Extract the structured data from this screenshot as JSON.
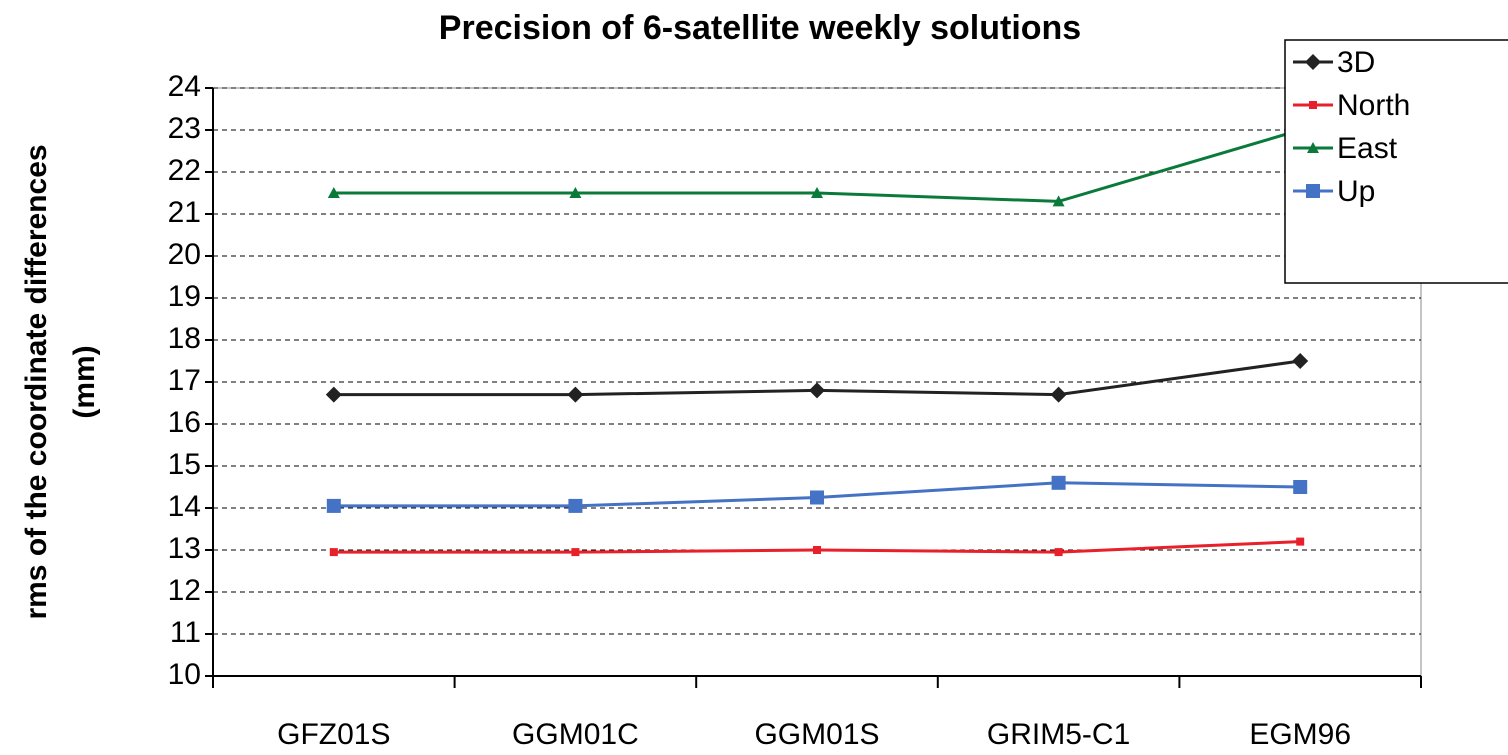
{
  "chart_data": {
    "type": "line",
    "title": "Precision of 6-satellite weekly solutions",
    "ylabel": [
      "rms of the coordinate differences",
      "(mm)"
    ],
    "categories": [
      "GFZ01S",
      "GGM01C",
      "GGM01S",
      "GRIM5-C1",
      "EGM96"
    ],
    "series": [
      {
        "name": "3D",
        "color": "#222222",
        "marker": "diamond",
        "values": [
          16.7,
          16.7,
          16.8,
          16.7,
          17.5
        ]
      },
      {
        "name": "North",
        "color": "#e8202a",
        "marker": "small-square",
        "values": [
          12.95,
          12.95,
          13.0,
          12.95,
          13.2
        ]
      },
      {
        "name": "East",
        "color": "#0a7a3a",
        "marker": "triangle",
        "values": [
          21.5,
          21.5,
          21.5,
          21.3,
          23.0
        ]
      },
      {
        "name": "Up",
        "color": "#4472c4",
        "marker": "square",
        "values": [
          14.05,
          14.05,
          14.25,
          14.6,
          14.5
        ]
      }
    ],
    "ylim": [
      10,
      24
    ],
    "yticks": [
      10,
      11,
      12,
      13,
      14,
      15,
      16,
      17,
      18,
      19,
      20,
      21,
      22,
      23,
      24
    ],
    "grid": true,
    "legend": "top-right"
  }
}
